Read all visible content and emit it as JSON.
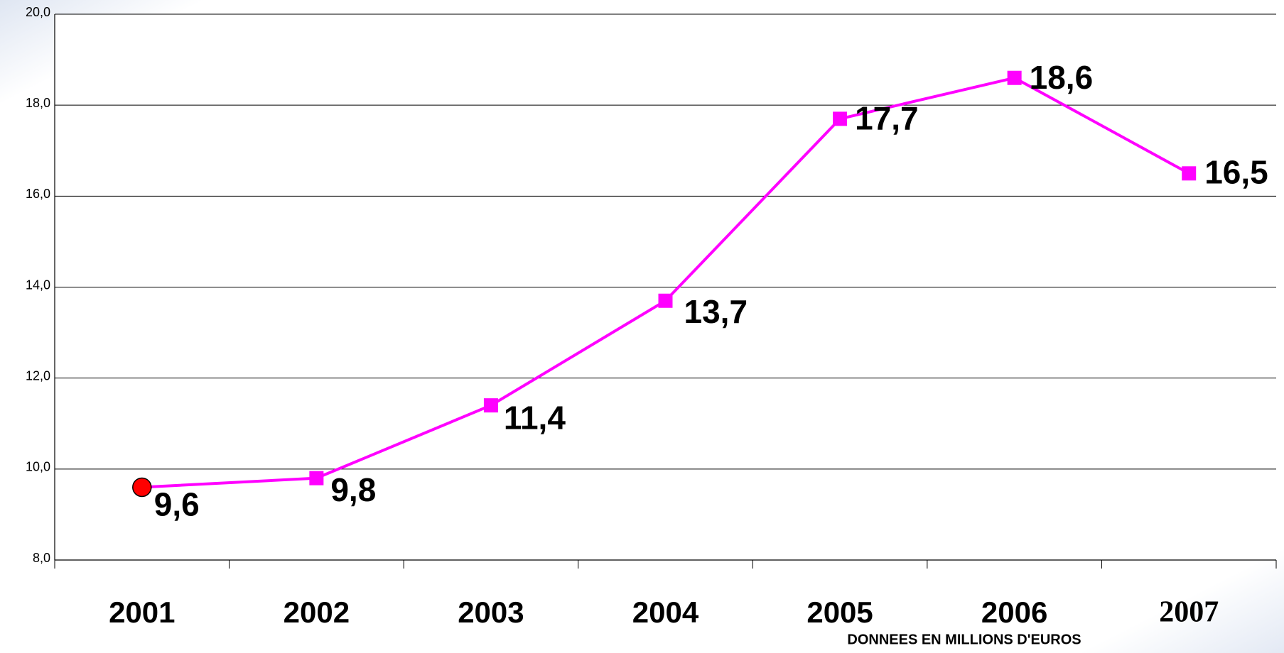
{
  "chart_data": {
    "type": "line",
    "note": "DONNEES EN MILLIONS D'EUROS",
    "categories": [
      "2001",
      "2002",
      "2003",
      "2004",
      "2005",
      "2006",
      "2007"
    ],
    "series": [
      {
        "color": "#ff00ff",
        "first_marker_color": "#ff0000",
        "values": [
          9.6,
          9.8,
          11.4,
          13.7,
          17.7,
          18.6,
          16.5
        ],
        "value_labels": [
          "9,6",
          "9,8",
          "11,4",
          "13,7",
          "17,7",
          "18,6",
          "16,5"
        ]
      }
    ],
    "ylim": [
      8,
      20
    ],
    "yticks": [
      {
        "value": 8,
        "label": "8,0"
      },
      {
        "value": 10,
        "label": "10,0"
      },
      {
        "value": 12,
        "label": "12,0"
      },
      {
        "value": 14,
        "label": "14,0"
      },
      {
        "value": 16,
        "label": "16,0"
      },
      {
        "value": 18,
        "label": "18,0"
      },
      {
        "value": 20,
        "label": "20,0"
      }
    ],
    "grid": true
  }
}
